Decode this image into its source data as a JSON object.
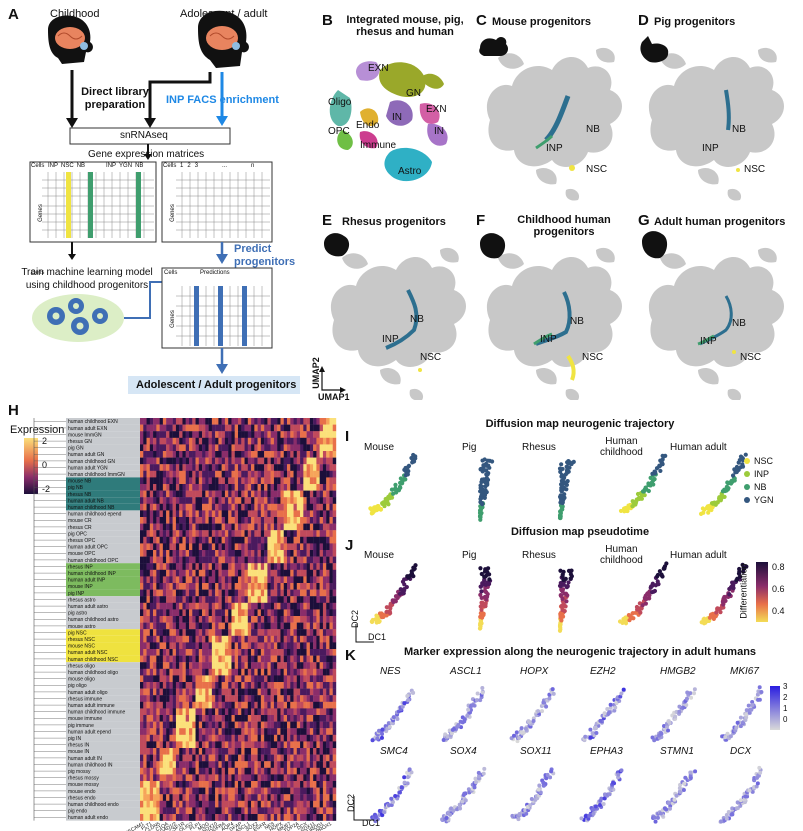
{
  "panels": {
    "A": "A",
    "B": "B",
    "C": "C",
    "D": "D",
    "E": "E",
    "F": "F",
    "G": "G",
    "H": "H",
    "I": "I",
    "J": "J",
    "K": "K"
  },
  "workflow": {
    "childhood": "Childhood",
    "adolescent": "Adolescent / adult",
    "direct_library": "Direct library\npreparation",
    "inp_facs": "INP FACS enrichment",
    "snrnaseq": "snRNAseq",
    "gene_expression": "Gene expression matrices",
    "cells": "Cells",
    "genes": "Genes",
    "cols_left": [
      "INP",
      "NSC",
      "NB",
      "INP",
      "YGN",
      "NB"
    ],
    "cols_right": [
      "1",
      "2",
      "3",
      "...",
      "n"
    ],
    "predict": "Predict\nprogenitors",
    "train": "Train machine learning model\nusing childhood progenitors",
    "predictions": "Predictions",
    "result": "Adolescent / Adult progenitors"
  },
  "umap": {
    "B_title": "Integrated mouse, pig,\nrhesus and human",
    "C_title": "Mouse progenitors",
    "D_title": "Pig progenitors",
    "E_title": "Rhesus progenitors",
    "F_title": "Childhood human\nprogenitors",
    "G_title": "Adult human progenitors",
    "cluster_labels": [
      "EXN",
      "Oligo",
      "GN",
      "EXN",
      "OPC",
      "Endo",
      "IN",
      "IN",
      "Immune",
      "Astro"
    ],
    "nb": "NB",
    "inp": "INP",
    "nsc": "NSC",
    "umap1": "UMAP1",
    "umap2": "UMAP2"
  },
  "heatmap": {
    "legend_title": "Expression",
    "legend_ticks": [
      "2",
      "0",
      "-2"
    ],
    "rows": [
      "human childhood EXN",
      "human adult EXN",
      "mouse ImmGN",
      "rhesus GN",
      "pig GN",
      "human adult GN",
      "human childhood GN",
      "human adult YGN",
      "human childhood ImmGN",
      "mouse NB",
      "pig NB",
      "rhesus NB",
      "human adult NB",
      "human childhood NB",
      "human childhood epend",
      "mouse CR",
      "rhesus CR",
      "pig OPC",
      "rhesus OPC",
      "human adult OPC",
      "mouse OPC",
      "human childhood OPC",
      "rhesus INP",
      "human childhood INP",
      "human adult INP",
      "mouse INP",
      "pig INP",
      "rhesus astro",
      "human adult astro",
      "pig astro",
      "human childhood astro",
      "mouse astro",
      "pig NSC",
      "rhesus NSC",
      "mouse NSC",
      "human adult NSC",
      "human childhood NSC",
      "rhesus oligo",
      "human childhood oligo",
      "mouse oligo",
      "pig oligo",
      "human adult oligo",
      "rhesus immune",
      "human adult immune",
      "human childhood immune",
      "mouse immune",
      "pig immune",
      "human adult epend",
      "pig IN",
      "rhesus IN",
      "mouse IN",
      "human adult IN",
      "human childhood IN",
      "pig mossy",
      "rhesus mossy",
      "mouse mossy",
      "mouse endo",
      "rhesus endo",
      "human childhood endo",
      "pig endo",
      "human adult endo"
    ],
    "genes": [
      "PECAM1",
      "FLT1",
      "CLDN5",
      "C1QA",
      "GAD1/2",
      "CSF1R",
      "OLIG2",
      "PLP1",
      "MOG",
      "SOX10",
      "PDGFRA",
      "AQP4",
      "GFAP",
      "ASCL1",
      "SOX2",
      "EGFR",
      "NES",
      "HOPX",
      "MKI67",
      "TOP2A",
      "DCX",
      "SOX11",
      "NEUROD1",
      "PROX1"
    ]
  },
  "dmap": {
    "I_title": "Diffusion map neurogenic trajectory",
    "J_title": "Diffusion map pseudotime",
    "species": [
      "Mouse",
      "Pig",
      "Rhesus",
      "Human\nchildhood",
      "Human adult"
    ],
    "legend": [
      {
        "label": "NSC",
        "color": "#f0e442"
      },
      {
        "label": "INP",
        "color": "#9ccb3b"
      },
      {
        "label": "NB",
        "color": "#3f9e6e"
      },
      {
        "label": "YGN",
        "color": "#34577f"
      }
    ],
    "diff_title": "Differentiation",
    "diff_ticks": [
      "0.8",
      "0.6",
      "0.4"
    ],
    "dc1": "DC1",
    "dc2": "DC2"
  },
  "markers": {
    "title": "Marker expression along the neurogenic trajectory in adult humans",
    "genes": [
      "NES",
      "ASCL1",
      "HOPX",
      "EZH2",
      "HMGB2",
      "MKI67",
      "SMC4",
      "SOX4",
      "SOX11",
      "EPHA3",
      "STMN1",
      "DCX"
    ],
    "ticks": [
      "3",
      "2",
      "1",
      "0"
    ]
  }
}
